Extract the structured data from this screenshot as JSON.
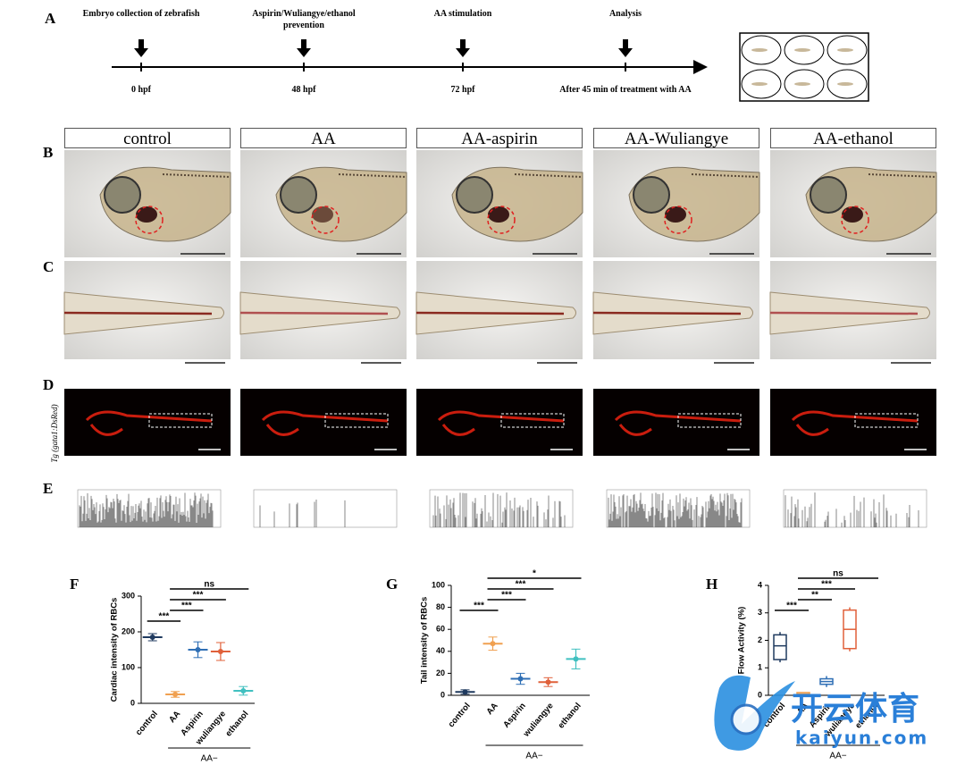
{
  "figure": {
    "panel_labels": [
      "A",
      "B",
      "C",
      "D",
      "E",
      "F",
      "G",
      "H"
    ],
    "timeline": [
      {
        "label": "Embryo collection of zebrafish",
        "time": "0 hpf"
      },
      {
        "label": "Aspirin/Wuliangye/ethanol prevention",
        "time": "48 hpf"
      },
      {
        "label": "AA stimulation",
        "time": "72 hpf"
      },
      {
        "label": "Analysis",
        "time": "After 45 min of treatment with AA"
      }
    ],
    "groups": [
      "control",
      "AA",
      "AA-aspirin",
      "AA-Wuliangye",
      "AA-ethanol"
    ],
    "transgenic_label": "Tg (gata1:DsRed)"
  },
  "chart_data": [
    {
      "type": "dot",
      "ylabel": "Cardiac intensity of RBCs",
      "categories": [
        "control",
        "AA",
        "Aspirin",
        "wuliangye",
        "ethanol"
      ],
      "group_label": "AA−",
      "colors": [
        "#1f3a5f",
        "#f0a050",
        "#2f6fb5",
        "#e0603a",
        "#40c0c0"
      ],
      "values": [
        185,
        25,
        150,
        145,
        35
      ],
      "errors": [
        10,
        8,
        22,
        25,
        12
      ],
      "ylim": [
        0,
        300
      ],
      "yticks": [
        0,
        100,
        200,
        300
      ],
      "significance": [
        {
          "pair": [
            0,
            1
          ],
          "label": "***"
        },
        {
          "pair": [
            1,
            2
          ],
          "label": "***"
        },
        {
          "pair": [
            1,
            3
          ],
          "label": "***"
        },
        {
          "pair": [
            1,
            4
          ],
          "label": "ns"
        }
      ]
    },
    {
      "type": "dot",
      "ylabel": "Tail intensity of RBCs",
      "categories": [
        "control",
        "AA",
        "Aspirin",
        "wuliangye",
        "ethanol"
      ],
      "group_label": "AA−",
      "colors": [
        "#1f3a5f",
        "#f0a050",
        "#2f6fb5",
        "#e0603a",
        "#40c0c0"
      ],
      "values": [
        3,
        47,
        15,
        12,
        33
      ],
      "errors": [
        2,
        6,
        5,
        4,
        9
      ],
      "ylim": [
        0,
        100
      ],
      "yticks": [
        0,
        20,
        40,
        60,
        80,
        100
      ],
      "significance": [
        {
          "pair": [
            0,
            1
          ],
          "label": "***"
        },
        {
          "pair": [
            1,
            2
          ],
          "label": "***"
        },
        {
          "pair": [
            1,
            3
          ],
          "label": "***"
        },
        {
          "pair": [
            1,
            4
          ],
          "label": "*"
        }
      ]
    },
    {
      "type": "box",
      "ylabel": "Flow Activity (%)",
      "categories": [
        "control",
        "AA",
        "Aspirin",
        "wuliangye",
        "ethanol"
      ],
      "group_label": "AA−",
      "colors": [
        "#1f3a5f",
        "#f0a050",
        "#2f6fb5",
        "#e0603a",
        "#40c0c0"
      ],
      "boxes": [
        [
          1.2,
          1.3,
          1.8,
          2.2,
          2.3
        ],
        [
          0,
          0,
          0.05,
          0.1,
          0.1
        ],
        [
          0.3,
          0.4,
          0.5,
          0.6,
          0.7
        ],
        [
          1.6,
          1.7,
          2.4,
          3.1,
          3.2
        ],
        null
      ],
      "ylim": [
        0,
        4
      ],
      "yticks": [
        0,
        1,
        2,
        3,
        4
      ],
      "significance": [
        {
          "pair": [
            0,
            1
          ],
          "label": "***"
        },
        {
          "pair": [
            1,
            2
          ],
          "label": "**"
        },
        {
          "pair": [
            1,
            3
          ],
          "label": "***"
        },
        {
          "pair": [
            1,
            4
          ],
          "label": "ns"
        }
      ]
    }
  ],
  "watermark": {
    "logo": "开云体育",
    "url": "kaiyun.com"
  }
}
